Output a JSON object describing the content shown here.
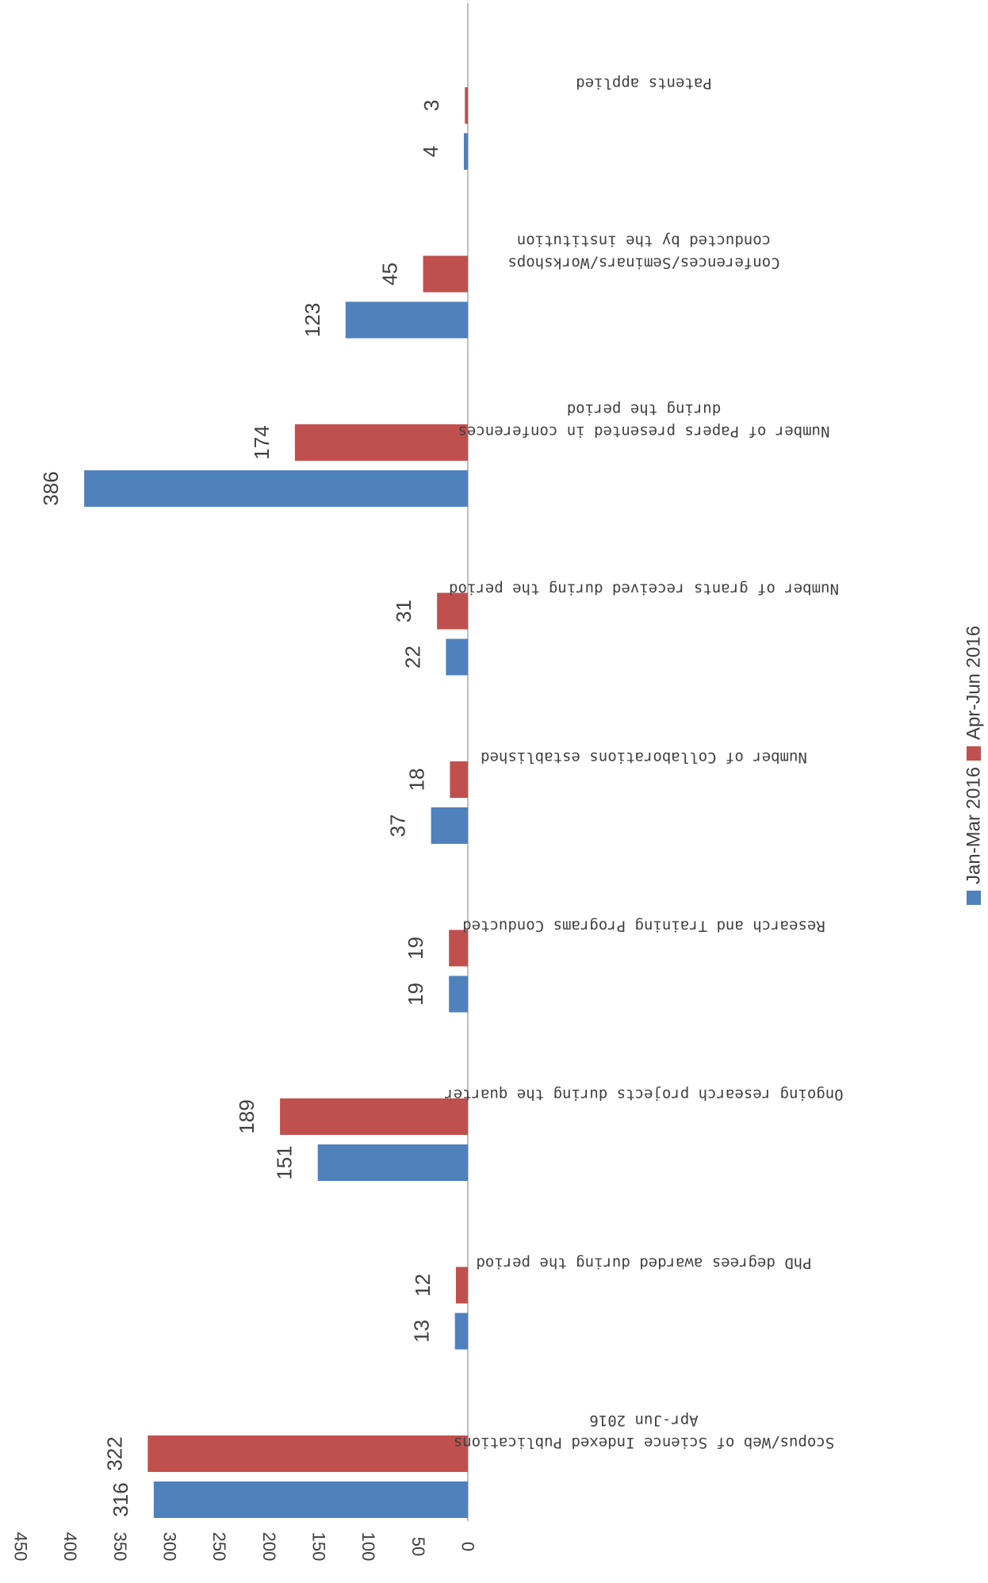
{
  "chart_data": {
    "type": "bar",
    "orientation": "horizontal",
    "categories": [
      "Scopus/Web of Science Indexed Publications Apr-Jun 2016",
      "PhD degrees awarded during the period",
      "Ongoing research projects during the quarter",
      "Research and Training Programs Conducted",
      "Number of Collaborations established",
      "Number of grants received during the period",
      "Number of Papers presented in conferences during the period",
      "Conferences/Seminars/Workshops conducted by the institution",
      "Patents applied"
    ],
    "category_lines": [
      [
        "Scopus/Web of Science Indexed Publications",
        "Apr-Jun 2016"
      ],
      [
        "PhD degrees awarded during the period"
      ],
      [
        "Ongoing research projects during the quarter"
      ],
      [
        "Research and Training Programs Conducted"
      ],
      [
        "Number of Collaborations established"
      ],
      [
        "Number of grants received during the period"
      ],
      [
        "Number of Papers presented in conferences",
        "during the period"
      ],
      [
        "Conferences/Seminars/Workshops",
        "conducted by the institution"
      ],
      [
        "Patents applied"
      ]
    ],
    "series": [
      {
        "name": "Jan-Mar 2016",
        "color": "#4F81BD",
        "values": [
          316,
          13,
          151,
          19,
          37,
          22,
          386,
          123,
          4
        ]
      },
      {
        "name": "Apr-Jun 2016",
        "color": "#C0504D",
        "values": [
          322,
          12,
          189,
          19,
          18,
          31,
          174,
          45,
          3
        ]
      }
    ],
    "ylim": [
      0,
      450
    ],
    "ticks": [
      0,
      50,
      100,
      150,
      200,
      250,
      300,
      350,
      400,
      450
    ],
    "title": "",
    "xlabel": "",
    "ylabel": "",
    "grid": false,
    "legend": "bottom",
    "rotated": "image rotated 90 degrees counter-clockwise"
  }
}
